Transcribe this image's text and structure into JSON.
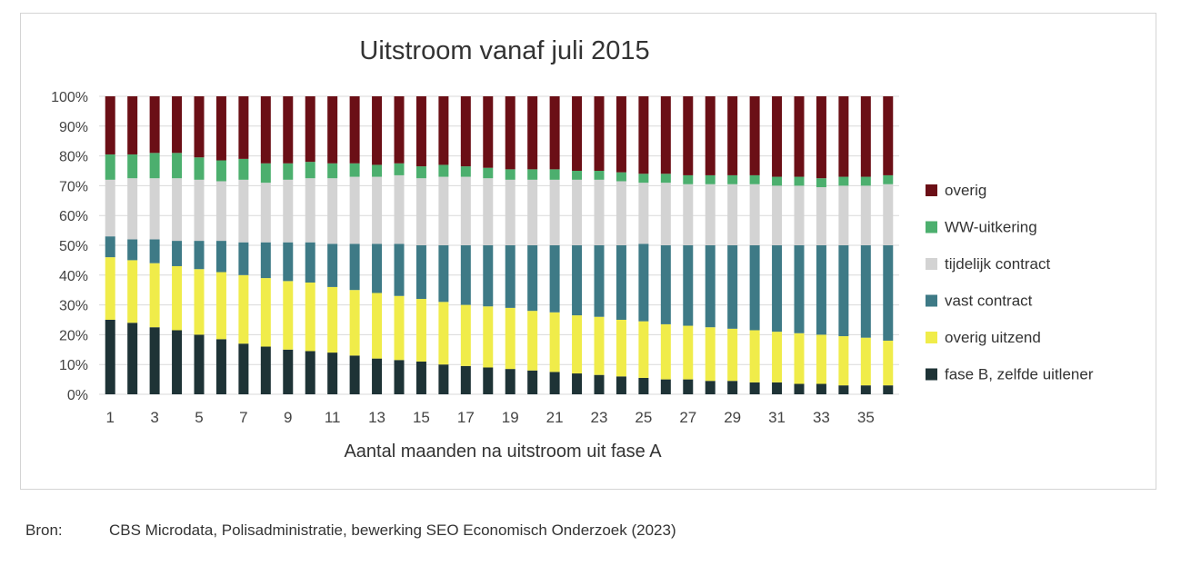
{
  "chart_data": {
    "type": "bar",
    "stacked": true,
    "title": "Uitstroom vanaf juli 2015",
    "xlabel": "Aantal maanden na uitstroom uit fase A",
    "ylabel": "",
    "ylim": [
      0,
      100
    ],
    "y_ticks": [
      "0%",
      "10%",
      "20%",
      "30%",
      "40%",
      "50%",
      "60%",
      "70%",
      "80%",
      "90%",
      "100%"
    ],
    "x_tick_labels": [
      "1",
      "3",
      "5",
      "7",
      "9",
      "11",
      "13",
      "15",
      "17",
      "19",
      "21",
      "23",
      "25",
      "27",
      "29",
      "31",
      "33",
      "35"
    ],
    "legend_position": "right",
    "categories": [
      1,
      2,
      3,
      4,
      5,
      6,
      7,
      8,
      9,
      10,
      11,
      12,
      13,
      14,
      15,
      16,
      17,
      18,
      19,
      20,
      21,
      22,
      23,
      24,
      25,
      26,
      27,
      28,
      29,
      30,
      31,
      32,
      33,
      34,
      35,
      36
    ],
    "series": [
      {
        "name": "fase B, zelfde uitlener",
        "color": "#1e3336",
        "values": [
          25,
          24,
          22.5,
          21.5,
          20,
          18.5,
          17,
          16,
          15,
          14.5,
          14,
          13,
          12,
          11.5,
          11,
          10,
          9.5,
          9,
          8.5,
          8,
          7.5,
          7,
          6.5,
          6,
          5.5,
          5,
          5,
          4.5,
          4.5,
          4,
          4,
          3.5,
          3.5,
          3,
          3,
          3
        ]
      },
      {
        "name": "overig uitzend",
        "color": "#f0ec4a",
        "values": [
          21,
          21,
          21.5,
          21.5,
          22,
          22.5,
          23,
          23,
          23,
          23,
          22,
          22,
          22,
          21.5,
          21,
          21,
          20.5,
          20.5,
          20.5,
          20,
          20,
          19.5,
          19.5,
          19,
          19,
          18.5,
          18,
          18,
          17.5,
          17.5,
          17,
          17,
          16.5,
          16.5,
          16,
          15
        ]
      },
      {
        "name": "vast contract",
        "color": "#3e7a86",
        "values": [
          7,
          7,
          8,
          8.5,
          9.5,
          10.5,
          11,
          12,
          13,
          13.5,
          14.5,
          15.5,
          16.5,
          17.5,
          18,
          19,
          20,
          20.5,
          21,
          22,
          22.5,
          23.5,
          24,
          25,
          26,
          26.5,
          27,
          27.5,
          28,
          28.5,
          29,
          29.5,
          30,
          30.5,
          31,
          32
        ]
      },
      {
        "name": "tijdelijk contract",
        "color": "#d3d3d3",
        "values": [
          19,
          20.5,
          20.5,
          21,
          20.5,
          20,
          21,
          20,
          21,
          21.5,
          22,
          22.5,
          22.5,
          23,
          22.5,
          23,
          23,
          22.5,
          22,
          22,
          22,
          22,
          22,
          21.5,
          20.5,
          21,
          20.5,
          20.5,
          20.5,
          20.5,
          20,
          20,
          19.5,
          20,
          20,
          20.5
        ]
      },
      {
        "name": "WW-uitkering",
        "color": "#4caf6e",
        "values": [
          8.5,
          8,
          8.5,
          8.5,
          7.5,
          7,
          7,
          6.5,
          5.5,
          5.5,
          5,
          4.5,
          4,
          4,
          4,
          4,
          3.5,
          3.5,
          3.5,
          3.5,
          3.5,
          3,
          3,
          3,
          3,
          3,
          3,
          3,
          3,
          3,
          3,
          3,
          3,
          3,
          3,
          3
        ]
      },
      {
        "name": "overig",
        "color": "#6b0f16",
        "values": [
          19.5,
          19.5,
          19,
          19,
          20.5,
          21.5,
          21,
          22.5,
          22.5,
          22,
          22.5,
          22.5,
          23,
          22.5,
          23.5,
          23,
          23.5,
          24,
          24.5,
          24.5,
          24.5,
          25,
          25,
          25.5,
          26,
          26,
          26.5,
          26.5,
          26.5,
          26.5,
          27,
          27,
          27.5,
          27,
          27,
          26.5
        ]
      }
    ],
    "legend_order": [
      "overig",
      "WW-uitkering",
      "tijdelijk contract",
      "vast contract",
      "overig uitzend",
      "fase B, zelfde uitlener"
    ]
  },
  "source": {
    "label": "Bron:",
    "text": "CBS Microdata, Polisadministratie, bewerking SEO Economisch Onderzoek (2023)"
  }
}
